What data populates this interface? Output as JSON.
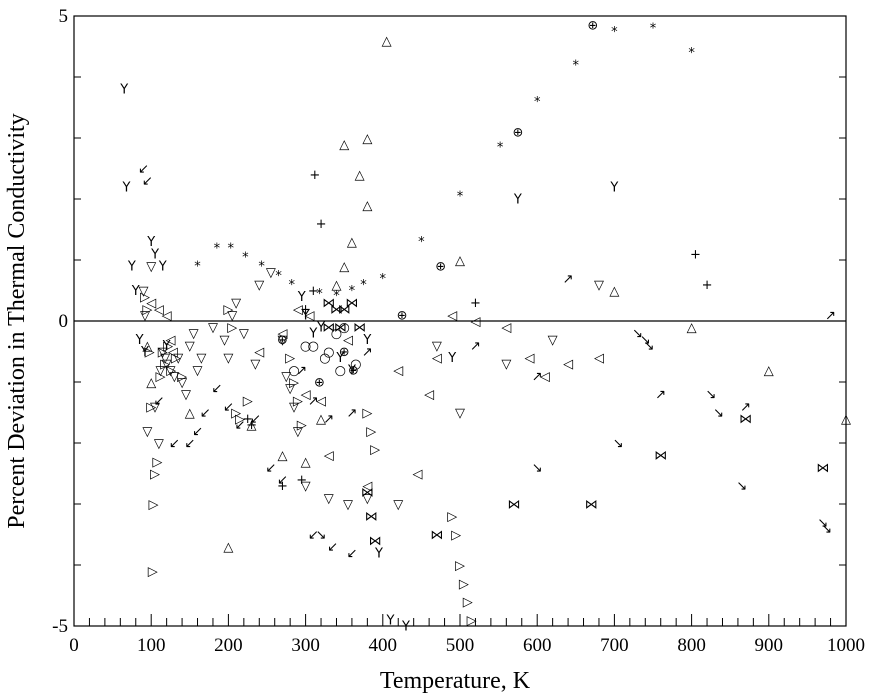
{
  "chart_data": {
    "type": "scatter",
    "title": "",
    "xlabel": "Temperature, K",
    "ylabel": "Percent Deviation in Thermal Conductivity",
    "xlim": [
      0,
      1000
    ],
    "ylim": [
      -5,
      5
    ],
    "x_ticks": [
      "0",
      "100",
      "200",
      "300",
      "400",
      "500",
      "600",
      "700",
      "800",
      "900",
      "1000"
    ],
    "y_ticks": [
      "-5",
      "0",
      "5"
    ],
    "reference_line_y": 0,
    "grid": false,
    "legend": "none",
    "series": [
      {
        "marker": "*",
        "points": [
          [
            160,
            0.9
          ],
          [
            185,
            1.2
          ],
          [
            203,
            1.2
          ],
          [
            222,
            1.05
          ],
          [
            243,
            0.9
          ],
          [
            265,
            0.75
          ],
          [
            282,
            0.6
          ],
          [
            318,
            0.45
          ],
          [
            340,
            0.42
          ],
          [
            360,
            0.5
          ],
          [
            375,
            0.6
          ],
          [
            400,
            0.7
          ],
          [
            450,
            1.3
          ],
          [
            500,
            2.05
          ],
          [
            552,
            2.85
          ],
          [
            600,
            3.6
          ],
          [
            650,
            4.2
          ],
          [
            700,
            4.75
          ],
          [
            750,
            4.8
          ],
          [
            800,
            4.4
          ]
        ]
      },
      {
        "marker": "◁",
        "points": [
          [
            100,
            0.3
          ],
          [
            110,
            0.2
          ],
          [
            120,
            0.1
          ],
          [
            125,
            -0.3
          ],
          [
            128,
            -0.5
          ],
          [
            240,
            -0.5
          ],
          [
            270,
            -0.2
          ],
          [
            290,
            0.2
          ],
          [
            300,
            -1.2
          ],
          [
            305,
            0.1
          ],
          [
            320,
            -1.3
          ],
          [
            330,
            -2.2
          ],
          [
            355,
            -0.3
          ],
          [
            380,
            -2.7
          ],
          [
            420,
            -0.8
          ],
          [
            445,
            -2.5
          ],
          [
            460,
            -1.2
          ],
          [
            470,
            -0.6
          ],
          [
            490,
            0.1
          ],
          [
            520,
            0.0
          ],
          [
            560,
            -0.1
          ],
          [
            590,
            -0.6
          ],
          [
            610,
            -0.9
          ],
          [
            640,
            -0.7
          ],
          [
            680,
            -0.6
          ]
        ]
      },
      {
        "marker": "▽",
        "points": [
          [
            90,
            0.5
          ],
          [
            92,
            0.1
          ],
          [
            95,
            -1.8
          ],
          [
            100,
            0.9
          ],
          [
            105,
            -1.4
          ],
          [
            110,
            -2.0
          ],
          [
            112,
            -0.8
          ],
          [
            115,
            -0.5
          ],
          [
            118,
            -0.6
          ],
          [
            120,
            -0.7
          ],
          [
            125,
            -0.8
          ],
          [
            130,
            -0.9
          ],
          [
            135,
            -0.6
          ],
          [
            140,
            -1.0
          ],
          [
            145,
            -1.2
          ],
          [
            150,
            -0.4
          ],
          [
            155,
            -0.2
          ],
          [
            160,
            -0.8
          ],
          [
            165,
            -0.6
          ],
          [
            180,
            -0.1
          ],
          [
            195,
            -0.3
          ],
          [
            200,
            -0.6
          ],
          [
            205,
            0.1
          ],
          [
            210,
            0.3
          ],
          [
            220,
            -0.2
          ],
          [
            235,
            -0.7
          ],
          [
            240,
            0.6
          ],
          [
            255,
            0.8
          ],
          [
            270,
            -0.3
          ],
          [
            275,
            -0.9
          ],
          [
            280,
            -1.1
          ],
          [
            285,
            -1.4
          ],
          [
            290,
            -1.8
          ],
          [
            300,
            -2.7
          ],
          [
            330,
            -2.9
          ],
          [
            355,
            -3.0
          ],
          [
            380,
            -2.9
          ],
          [
            420,
            -3.0
          ],
          [
            470,
            -0.4
          ],
          [
            500,
            -1.5
          ],
          [
            560,
            -0.7
          ],
          [
            620,
            -0.3
          ],
          [
            680,
            0.6
          ]
        ]
      },
      {
        "marker": "▷",
        "points": [
          [
            92,
            0.4
          ],
          [
            95,
            0.2
          ],
          [
            98,
            -0.5
          ],
          [
            100,
            -1.4
          ],
          [
            103,
            -3.0
          ],
          [
            105,
            -2.5
          ],
          [
            108,
            -2.3
          ],
          [
            112,
            -0.9
          ],
          [
            115,
            -0.5
          ],
          [
            118,
            -0.7
          ],
          [
            122,
            -0.4
          ],
          [
            126,
            -0.8
          ],
          [
            132,
            -0.6
          ],
          [
            140,
            -0.9
          ],
          [
            200,
            0.2
          ],
          [
            205,
            -0.1
          ],
          [
            210,
            -1.5
          ],
          [
            215,
            -1.6
          ],
          [
            225,
            -1.3
          ],
          [
            280,
            -0.6
          ],
          [
            285,
            -1.0
          ],
          [
            290,
            -1.3
          ],
          [
            295,
            -1.7
          ],
          [
            380,
            -1.5
          ],
          [
            385,
            -1.8
          ],
          [
            390,
            -2.1
          ],
          [
            490,
            -3.2
          ],
          [
            495,
            -3.5
          ],
          [
            500,
            -4.0
          ],
          [
            505,
            -4.3
          ],
          [
            510,
            -4.6
          ],
          [
            515,
            -4.9
          ],
          [
            102,
            -4.1
          ]
        ]
      },
      {
        "marker": "△",
        "points": [
          [
            95,
            -0.4
          ],
          [
            100,
            -1.0
          ],
          [
            150,
            -1.5
          ],
          [
            200,
            -3.7
          ],
          [
            230,
            -1.7
          ],
          [
            270,
            -2.2
          ],
          [
            300,
            -2.3
          ],
          [
            320,
            -1.6
          ],
          [
            340,
            0.6
          ],
          [
            350,
            0.9
          ],
          [
            360,
            1.3
          ],
          [
            380,
            1.9
          ],
          [
            405,
            4.6
          ],
          [
            500,
            1.0
          ],
          [
            700,
            0.5
          ],
          [
            800,
            -0.1
          ],
          [
            900,
            -0.8
          ],
          [
            1000,
            -1.6
          ],
          [
            350,
            2.9
          ],
          [
            370,
            2.4
          ],
          [
            380,
            3.0
          ]
        ]
      },
      {
        "marker": "⋈",
        "points": [
          [
            330,
            0.3
          ],
          [
            340,
            0.2
          ],
          [
            350,
            0.2
          ],
          [
            360,
            0.3
          ],
          [
            370,
            -0.1
          ],
          [
            380,
            -2.8
          ],
          [
            385,
            -3.2
          ],
          [
            390,
            -3.6
          ],
          [
            470,
            -3.5
          ],
          [
            570,
            -3.0
          ],
          [
            670,
            -3.0
          ],
          [
            760,
            -2.2
          ],
          [
            870,
            -1.6
          ],
          [
            970,
            -2.4
          ],
          [
            330,
            -0.1
          ],
          [
            345,
            -0.1
          ]
        ]
      },
      {
        "marker": "Y",
        "points": [
          [
            65,
            3.8
          ],
          [
            68,
            2.2
          ],
          [
            75,
            0.9
          ],
          [
            80,
            0.5
          ],
          [
            85,
            -0.3
          ],
          [
            92,
            -0.5
          ],
          [
            100,
            1.3
          ],
          [
            105,
            1.1
          ],
          [
            115,
            0.9
          ],
          [
            120,
            -0.4
          ],
          [
            295,
            0.4
          ],
          [
            300,
            0.1
          ],
          [
            310,
            -0.2
          ],
          [
            320,
            -0.1
          ],
          [
            345,
            -0.6
          ],
          [
            360,
            -0.8
          ],
          [
            380,
            -0.3
          ],
          [
            395,
            -3.8
          ],
          [
            410,
            -4.9
          ],
          [
            430,
            -5.0
          ],
          [
            490,
            -0.6
          ],
          [
            575,
            2.0
          ],
          [
            700,
            2.2
          ]
        ]
      },
      {
        "marker": "↙",
        "points": [
          [
            90,
            2.5
          ],
          [
            95,
            2.3
          ],
          [
            110,
            -1.3
          ],
          [
            130,
            -2.0
          ],
          [
            150,
            -2.0
          ],
          [
            160,
            -1.8
          ],
          [
            170,
            -1.5
          ],
          [
            185,
            -1.1
          ],
          [
            200,
            -1.4
          ],
          [
            215,
            -1.7
          ],
          [
            235,
            -1.6
          ],
          [
            255,
            -2.4
          ],
          [
            270,
            -2.6
          ],
          [
            310,
            -3.5
          ],
          [
            335,
            -3.7
          ],
          [
            360,
            -3.8
          ]
        ]
      },
      {
        "marker": "↗",
        "points": [
          [
            295,
            -0.8
          ],
          [
            310,
            -1.3
          ],
          [
            330,
            -1.6
          ],
          [
            360,
            -1.5
          ],
          [
            380,
            -0.5
          ],
          [
            520,
            -0.4
          ],
          [
            600,
            -0.9
          ],
          [
            640,
            0.7
          ],
          [
            760,
            -1.2
          ],
          [
            870,
            -1.4
          ],
          [
            980,
            0.1
          ]
        ]
      },
      {
        "marker": "↘",
        "points": [
          [
            320,
            -3.5
          ],
          [
            600,
            -2.4
          ],
          [
            705,
            -2.0
          ],
          [
            745,
            -0.4
          ],
          [
            825,
            -1.2
          ],
          [
            835,
            -1.5
          ],
          [
            865,
            -2.7
          ],
          [
            970,
            -3.3
          ],
          [
            975,
            -3.4
          ],
          [
            730,
            -0.2
          ],
          [
            740,
            -0.3
          ]
        ]
      },
      {
        "marker": "⊕",
        "points": [
          [
            318,
            -1.0
          ],
          [
            362,
            -0.8
          ],
          [
            425,
            0.1
          ],
          [
            475,
            0.9
          ],
          [
            575,
            3.1
          ],
          [
            672,
            4.85
          ],
          [
            270,
            -0.3
          ],
          [
            350,
            -0.5
          ]
        ]
      },
      {
        "marker": "+",
        "points": [
          [
            225,
            -1.6
          ],
          [
            230,
            -1.7
          ],
          [
            270,
            -2.7
          ],
          [
            295,
            -2.6
          ],
          [
            300,
            0.2
          ],
          [
            310,
            0.5
          ],
          [
            312,
            2.4
          ],
          [
            320,
            1.6
          ],
          [
            520,
            0.3
          ],
          [
            820,
            0.6
          ],
          [
            805,
            1.1
          ]
        ]
      },
      {
        "marker": "○",
        "points": [
          [
            285,
            -0.8
          ],
          [
            300,
            -0.4
          ],
          [
            310,
            -0.4
          ],
          [
            325,
            -0.6
          ],
          [
            345,
            -0.8
          ],
          [
            365,
            -0.7
          ],
          [
            330,
            -0.5
          ],
          [
            340,
            -0.2
          ],
          [
            350,
            -0.1
          ]
        ]
      }
    ]
  }
}
